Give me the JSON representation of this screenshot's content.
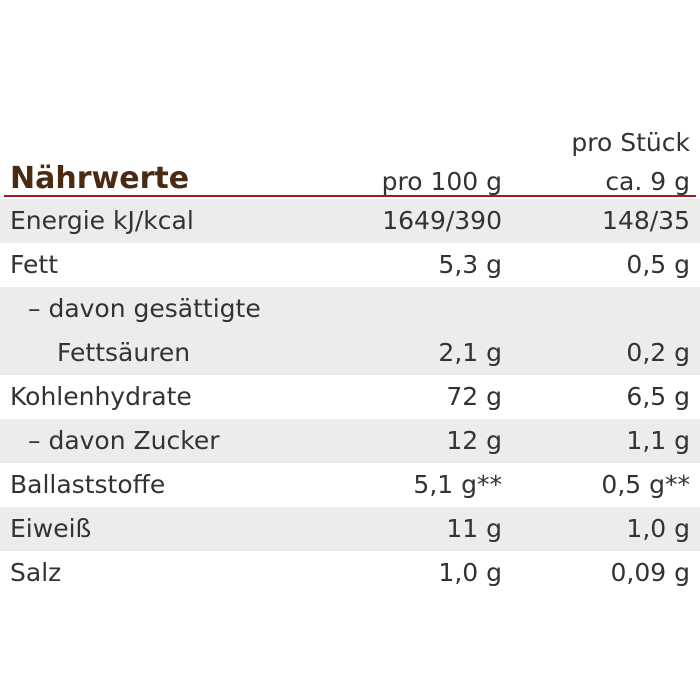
{
  "header": {
    "title": "Nährwerte",
    "per_100g": "pro 100 g",
    "per_piece": [
      "pro Stück",
      "ca. 9 g"
    ]
  },
  "rows": [
    {
      "label": [
        "Energie kJ/kcal"
      ],
      "per_100g": "1649/390",
      "per_piece": "148/35"
    },
    {
      "label": [
        "Fett"
      ],
      "per_100g": "5,3 g",
      "per_piece": "0,5 g"
    },
    {
      "label": [
        "– davon gesättigte",
        "Fettsäuren"
      ],
      "per_100g": "2,1 g",
      "per_piece": "0,2 g"
    },
    {
      "label": [
        "Kohlenhydrate"
      ],
      "per_100g": "72 g",
      "per_piece": "6,5 g"
    },
    {
      "label": [
        "– davon Zucker"
      ],
      "per_100g": "12 g",
      "per_piece": "1,1 g"
    },
    {
      "label": [
        "Ballaststoffe"
      ],
      "per_100g": "5,1 g**",
      "per_piece": "0,5 g**"
    },
    {
      "label": [
        "Eiweiß"
      ],
      "per_100g": "11 g",
      "per_piece": "1,0 g"
    },
    {
      "label": [
        "Salz"
      ],
      "per_100g": "1,0 g",
      "per_piece": "0,09 g"
    }
  ]
}
